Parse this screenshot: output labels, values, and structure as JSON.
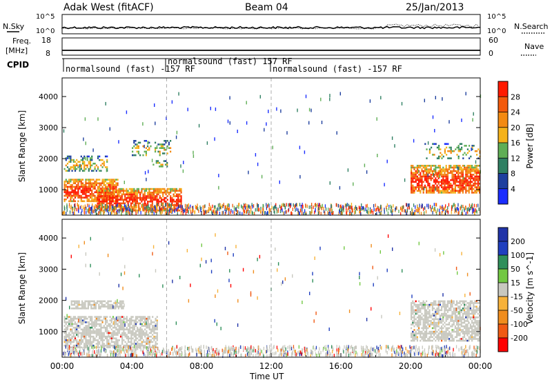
{
  "header": {
    "station": "Adak West (fitACF)",
    "beam": "Beam 04",
    "date": "25/Jan/2013"
  },
  "noise_panel": {
    "left_label": "N.Sky",
    "right_label": "N.Search",
    "left_ticks": [
      "10^5",
      "10^0"
    ],
    "right_ticks": [
      "10^5",
      "10^0"
    ]
  },
  "freq_panel": {
    "left_label_1": "Freq.",
    "left_label_2": "[MHz]",
    "right_label": "Nave",
    "left_ticks": [
      "18",
      "8"
    ],
    "right_ticks": [
      "60",
      "0"
    ]
  },
  "cpid_panel": {
    "label": "CPID",
    "segments": [
      "normalsound (fast) -157 RF",
      "normalsound (fast) 157 RF",
      "normalsound (fast) -157 RF"
    ]
  },
  "colors": {
    "power_scale": [
      "#1a2dff",
      "#1e3f9e",
      "#2f7f62",
      "#5fae55",
      "#f4b21a",
      "#f38a12",
      "#f25a0c",
      "#ff1a00"
    ],
    "velocity_scale": [
      "#ff0000",
      "#f05a14",
      "#f08d1e",
      "#f7b23a",
      "#c8c8bf",
      "#72c843",
      "#2f8f5a",
      "#1f3fbf",
      "#2033a8"
    ],
    "ground_scatter": "#c8c8bf"
  },
  "chart_data": [
    {
      "type": "heatmap",
      "title": "Power",
      "xlabel": "",
      "ylabel": "Slant Range [km]",
      "colorbar_label": "Power [dB]",
      "colorbar_ticks": [
        "4",
        "8",
        "12",
        "16",
        "20",
        "24",
        "28"
      ],
      "y_ticks": [
        "1000",
        "2000",
        "3000",
        "4000"
      ],
      "ylim": [
        180,
        4600
      ],
      "xlim_hours": [
        0,
        24
      ],
      "scatter_regions": [
        {
          "start_hour": 0.1,
          "end_hour": 3.2,
          "range_min_km": 650,
          "range_max_km": 1350,
          "level": "strong"
        },
        {
          "start_hour": 2.0,
          "end_hour": 6.8,
          "range_min_km": 350,
          "range_max_km": 1050,
          "level": "strong"
        },
        {
          "start_hour": 0.1,
          "end_hour": 2.6,
          "range_min_km": 1600,
          "range_max_km": 2100,
          "level": "medium"
        },
        {
          "start_hour": 4.0,
          "end_hour": 6.2,
          "range_min_km": 2100,
          "range_max_km": 2600,
          "level": "weak"
        },
        {
          "start_hour": 5.2,
          "end_hour": 6.0,
          "range_min_km": 1750,
          "range_max_km": 1950,
          "level": "weak"
        },
        {
          "start_hour": 20.0,
          "end_hour": 24.0,
          "range_min_km": 900,
          "range_max_km": 1800,
          "level": "strong"
        },
        {
          "start_hour": 20.8,
          "end_hour": 24.0,
          "range_min_km": 2000,
          "range_max_km": 2500,
          "level": "weak"
        }
      ]
    },
    {
      "type": "heatmap",
      "title": "Velocity",
      "xlabel": "Time UT",
      "ylabel": "Slant Range [km]",
      "colorbar_label": "Velocity [m s^-1]",
      "colorbar_ticks": [
        "-200",
        "-100",
        "-50",
        "-15",
        "15",
        "50",
        "100",
        "200"
      ],
      "y_ticks": [
        "1000",
        "2000",
        "3000",
        "4000"
      ],
      "ylim": [
        180,
        4600
      ],
      "x_ticks": [
        "00:00",
        "04:00",
        "08:00",
        "12:00",
        "16:00",
        "20:00",
        "00:00"
      ],
      "xlim_hours": [
        0,
        24
      ],
      "scatter_regions": [
        {
          "start_hour": 0.1,
          "end_hour": 5.5,
          "range_min_km": 500,
          "range_max_km": 1500,
          "level": "ground"
        },
        {
          "start_hour": 0.5,
          "end_hour": 3.5,
          "range_min_km": 1750,
          "range_max_km": 2000,
          "level": "ground"
        },
        {
          "start_hour": 20.0,
          "end_hour": 24.0,
          "range_min_km": 700,
          "range_max_km": 2000,
          "level": "ground"
        }
      ]
    }
  ]
}
